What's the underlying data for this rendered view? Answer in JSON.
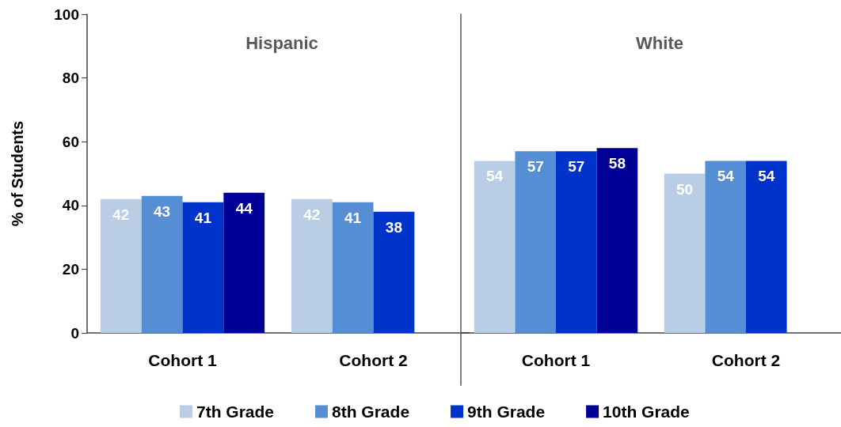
{
  "chart_data": [
    {
      "type": "bar",
      "title": "Hispanic",
      "ylabel": "% of Students",
      "categories": [
        "Cohort 1",
        "Cohort 2"
      ],
      "series": [
        {
          "name": "7th Grade",
          "color": "#b9cde5",
          "values": [
            42,
            42
          ]
        },
        {
          "name": "8th Grade",
          "color": "#558ed5",
          "values": [
            43,
            41
          ]
        },
        {
          "name": "9th Grade",
          "color": "#0033cc",
          "values": [
            41,
            38
          ]
        },
        {
          "name": "10th Grade",
          "color": "#000099",
          "values": [
            44,
            null
          ]
        }
      ],
      "ylim": [
        0,
        100
      ],
      "yticks": [
        0,
        20,
        40,
        60,
        80,
        100
      ],
      "data_labels": true,
      "legend": "bottom",
      "grid": false
    },
    {
      "type": "bar",
      "title": "White",
      "categories": [
        "Cohort 1",
        "Cohort 2"
      ],
      "series": [
        {
          "color": "#b9cde5",
          "values": [
            54,
            50
          ]
        },
        {
          "color": "#558ed5",
          "values": [
            57,
            54
          ]
        },
        {
          "color": "#0033cc",
          "values": [
            57,
            54
          ]
        },
        {
          "color": "#000099",
          "values": [
            58,
            null
          ]
        }
      ],
      "ylim": [
        0,
        100
      ],
      "tick_labels": "x",
      "data_labels": true,
      "grid": false
    }
  ]
}
